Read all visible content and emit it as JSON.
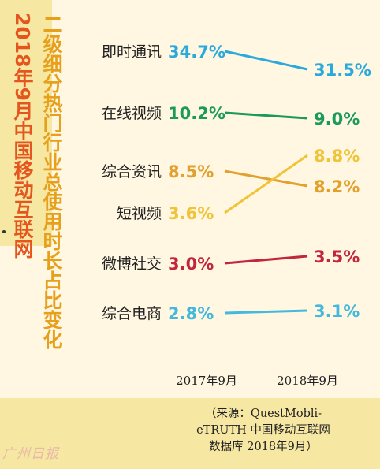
{
  "title": "二级细分热门行业总使用时长占比变化",
  "subtitle": "2018年9月中国移动互联网",
  "source_lines": [
    "（来源：QuestMobli-",
    "eTRUTH 中国移动互联网",
    "数据库 2018年9月）"
  ],
  "watermark": "广州日报",
  "colors": {
    "即时通讯": "#2aa9dc",
    "在线视频": "#1b9a5b",
    "综合资讯": "#e2a02e",
    "短视频": "#f0c338",
    "微博社交": "#c2263c",
    "综合电商": "#45b8dd"
  },
  "chart_data": {
    "type": "line",
    "title": "二级细分热门行业总使用时长占比变化",
    "subtitle": "2018年9月中国移动互联网",
    "categories": [
      "2017年9月",
      "2018年9月"
    ],
    "unit": "%",
    "series": [
      {
        "name": "即时通讯",
        "values": [
          34.7,
          31.5
        ],
        "labels": [
          "34.7%",
          "31.5%"
        ]
      },
      {
        "name": "在线视频",
        "values": [
          10.2,
          9.0
        ],
        "labels": [
          "10.2%",
          "9.0%"
        ]
      },
      {
        "name": "综合资讯",
        "values": [
          8.5,
          8.2
        ],
        "labels": [
          "8.5%",
          "8.2%"
        ]
      },
      {
        "name": "短视频",
        "values": [
          3.6,
          8.8
        ],
        "labels": [
          "3.6%",
          "8.8%"
        ]
      },
      {
        "name": "微博社交",
        "values": [
          3.0,
          3.5
        ],
        "labels": [
          "3.0%",
          "3.5%"
        ]
      },
      {
        "name": "综合电商",
        "values": [
          2.8,
          3.1
        ],
        "labels": [
          "2.8%",
          "3.1%"
        ]
      }
    ]
  }
}
